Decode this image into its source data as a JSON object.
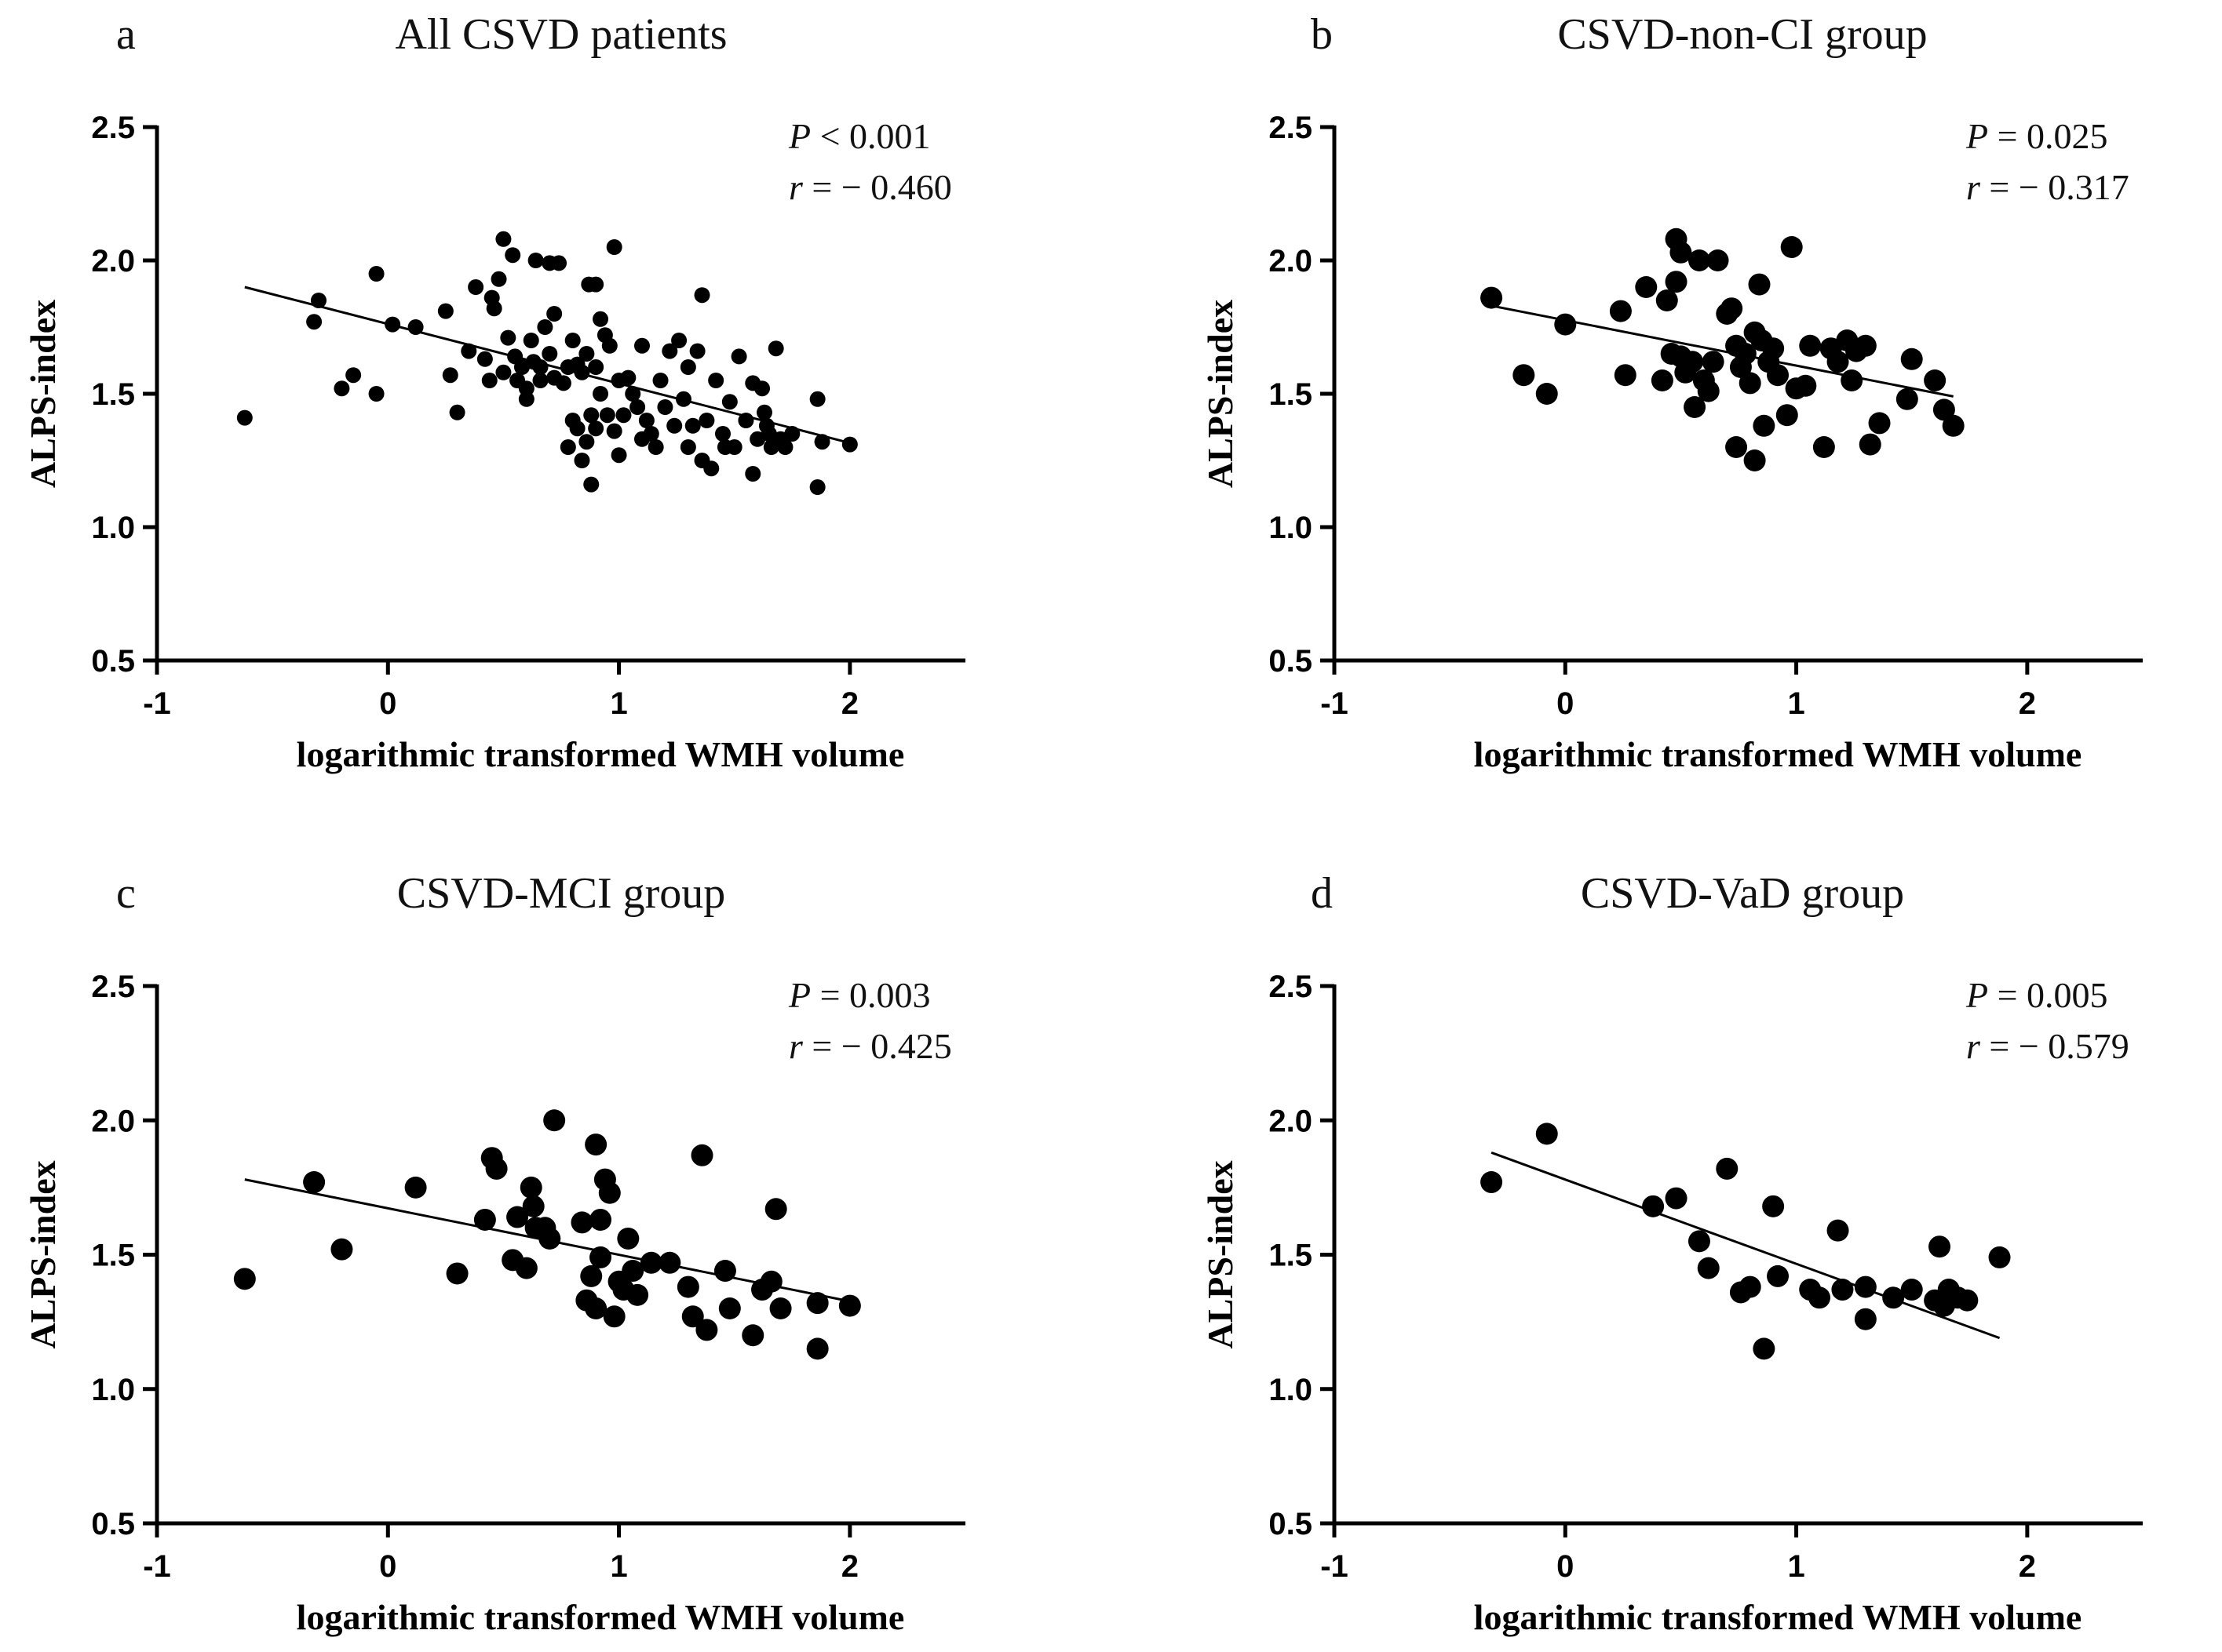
{
  "figure": {
    "panels": [
      "a",
      "b",
      "c",
      "d"
    ]
  },
  "chart_data": [
    {
      "type": "scatter",
      "label": "a",
      "title": "All CSVD patients",
      "xlabel": "logarithmic transformed WMH volume",
      "ylabel": "ALPS-index",
      "xlim": [
        -1,
        2.5
      ],
      "ylim": [
        0.5,
        2.5
      ],
      "xticks": [
        "-1",
        "0",
        "1",
        "2"
      ],
      "yticks": [
        "0.5",
        "1.0",
        "1.5",
        "2.0",
        "2.5"
      ],
      "p_italic": "P",
      "p_text": " < 0.001",
      "r_italic": "r",
      "r_text": " = − 0.460",
      "regression": {
        "x1": -0.62,
        "y1": 1.9,
        "x2": 1.98,
        "y2": 1.32
      },
      "points": [
        [
          -0.62,
          1.41
        ],
        [
          -0.32,
          1.77
        ],
        [
          -0.3,
          1.85
        ],
        [
          -0.2,
          1.52
        ],
        [
          -0.15,
          1.57
        ],
        [
          -0.05,
          1.95
        ],
        [
          -0.05,
          1.5
        ],
        [
          0.02,
          1.76
        ],
        [
          0.12,
          1.75
        ],
        [
          0.25,
          1.81
        ],
        [
          0.27,
          1.57
        ],
        [
          0.3,
          1.43
        ],
        [
          0.35,
          1.66
        ],
        [
          0.38,
          1.9
        ],
        [
          0.42,
          1.63
        ],
        [
          0.44,
          1.55
        ],
        [
          0.45,
          1.86
        ],
        [
          0.46,
          1.82
        ],
        [
          0.48,
          1.93
        ],
        [
          0.5,
          2.08
        ],
        [
          0.5,
          1.58
        ],
        [
          0.52,
          1.71
        ],
        [
          0.54,
          2.02
        ],
        [
          0.55,
          1.64
        ],
        [
          0.56,
          1.55
        ],
        [
          0.58,
          1.6
        ],
        [
          0.6,
          1.48
        ],
        [
          0.6,
          1.52
        ],
        [
          0.62,
          1.7
        ],
        [
          0.63,
          1.62
        ],
        [
          0.64,
          2.0
        ],
        [
          0.66,
          1.55
        ],
        [
          0.66,
          1.6
        ],
        [
          0.68,
          1.75
        ],
        [
          0.7,
          1.99
        ],
        [
          0.7,
          1.65
        ],
        [
          0.72,
          1.56
        ],
        [
          0.72,
          1.8
        ],
        [
          0.74,
          1.99
        ],
        [
          0.76,
          1.54
        ],
        [
          0.78,
          1.6
        ],
        [
          0.78,
          1.3
        ],
        [
          0.8,
          1.7
        ],
        [
          0.8,
          1.4
        ],
        [
          0.82,
          1.37
        ],
        [
          0.82,
          1.61
        ],
        [
          0.84,
          1.58
        ],
        [
          0.84,
          1.25
        ],
        [
          0.86,
          1.32
        ],
        [
          0.86,
          1.65
        ],
        [
          0.87,
          1.91
        ],
        [
          0.88,
          1.16
        ],
        [
          0.88,
          1.42
        ],
        [
          0.9,
          1.91
        ],
        [
          0.9,
          1.6
        ],
        [
          0.9,
          1.37
        ],
        [
          0.92,
          1.78
        ],
        [
          0.92,
          1.5
        ],
        [
          0.94,
          1.72
        ],
        [
          0.95,
          1.42
        ],
        [
          0.96,
          1.68
        ],
        [
          0.98,
          2.05
        ],
        [
          0.98,
          1.36
        ],
        [
          1.0,
          1.27
        ],
        [
          1.0,
          1.55
        ],
        [
          1.02,
          1.42
        ],
        [
          1.04,
          1.56
        ],
        [
          1.06,
          1.5
        ],
        [
          1.08,
          1.45
        ],
        [
          1.1,
          1.68
        ],
        [
          1.1,
          1.33
        ],
        [
          1.12,
          1.4
        ],
        [
          1.14,
          1.35
        ],
        [
          1.16,
          1.3
        ],
        [
          1.18,
          1.55
        ],
        [
          1.2,
          1.45
        ],
        [
          1.22,
          1.66
        ],
        [
          1.24,
          1.38
        ],
        [
          1.26,
          1.7
        ],
        [
          1.28,
          1.48
        ],
        [
          1.3,
          1.6
        ],
        [
          1.3,
          1.3
        ],
        [
          1.32,
          1.38
        ],
        [
          1.34,
          1.66
        ],
        [
          1.36,
          1.87
        ],
        [
          1.36,
          1.25
        ],
        [
          1.38,
          1.4
        ],
        [
          1.4,
          1.22
        ],
        [
          1.42,
          1.55
        ],
        [
          1.45,
          1.35
        ],
        [
          1.46,
          1.3
        ],
        [
          1.48,
          1.47
        ],
        [
          1.5,
          1.3
        ],
        [
          1.52,
          1.64
        ],
        [
          1.55,
          1.4
        ],
        [
          1.58,
          1.2
        ],
        [
          1.58,
          1.54
        ],
        [
          1.6,
          1.33
        ],
        [
          1.62,
          1.52
        ],
        [
          1.63,
          1.43
        ],
        [
          1.64,
          1.38
        ],
        [
          1.65,
          1.35
        ],
        [
          1.66,
          1.3
        ],
        [
          1.68,
          1.67
        ],
        [
          1.7,
          1.33
        ],
        [
          1.72,
          1.3
        ],
        [
          1.75,
          1.35
        ],
        [
          1.86,
          1.48
        ],
        [
          1.86,
          1.15
        ],
        [
          1.88,
          1.32
        ],
        [
          2.0,
          1.31
        ]
      ]
    },
    {
      "type": "scatter",
      "label": "b",
      "title": "CSVD-non-CI group",
      "xlabel": "logarithmic transformed WMH volume",
      "ylabel": "ALPS-index",
      "xlim": [
        -1,
        2.5
      ],
      "ylim": [
        0.5,
        2.5
      ],
      "xticks": [
        "-1",
        "0",
        "1",
        "2"
      ],
      "yticks": [
        "0.5",
        "1.0",
        "1.5",
        "2.0",
        "2.5"
      ],
      "p_italic": "P",
      "p_text": " = 0.025",
      "r_italic": "r",
      "r_text": " = − 0.317",
      "regression": {
        "x1": -0.32,
        "y1": 1.83,
        "x2": 1.68,
        "y2": 1.49
      },
      "points": [
        [
          -0.32,
          1.86
        ],
        [
          -0.18,
          1.57
        ],
        [
          -0.08,
          1.5
        ],
        [
          0.0,
          1.76
        ],
        [
          0.24,
          1.81
        ],
        [
          0.26,
          1.57
        ],
        [
          0.35,
          1.9
        ],
        [
          0.42,
          1.55
        ],
        [
          0.44,
          1.85
        ],
        [
          0.46,
          1.65
        ],
        [
          0.48,
          2.08
        ],
        [
          0.48,
          1.92
        ],
        [
          0.5,
          1.64
        ],
        [
          0.5,
          2.03
        ],
        [
          0.52,
          1.58
        ],
        [
          0.55,
          1.62
        ],
        [
          0.56,
          1.45
        ],
        [
          0.58,
          2.0
        ],
        [
          0.6,
          1.55
        ],
        [
          0.62,
          1.51
        ],
        [
          0.64,
          1.62
        ],
        [
          0.66,
          2.0
        ],
        [
          0.7,
          1.8
        ],
        [
          0.72,
          1.82
        ],
        [
          0.74,
          1.3
        ],
        [
          0.74,
          1.68
        ],
        [
          0.76,
          1.6
        ],
        [
          0.78,
          1.65
        ],
        [
          0.8,
          1.54
        ],
        [
          0.82,
          1.73
        ],
        [
          0.82,
          1.25
        ],
        [
          0.84,
          1.91
        ],
        [
          0.85,
          1.7
        ],
        [
          0.86,
          1.38
        ],
        [
          0.88,
          1.62
        ],
        [
          0.9,
          1.67
        ],
        [
          0.92,
          1.57
        ],
        [
          0.96,
          1.42
        ],
        [
          0.98,
          2.05
        ],
        [
          1.0,
          1.52
        ],
        [
          1.04,
          1.53
        ],
        [
          1.06,
          1.68
        ],
        [
          1.12,
          1.3
        ],
        [
          1.15,
          1.67
        ],
        [
          1.18,
          1.62
        ],
        [
          1.22,
          1.7
        ],
        [
          1.24,
          1.55
        ],
        [
          1.26,
          1.66
        ],
        [
          1.3,
          1.68
        ],
        [
          1.32,
          1.31
        ],
        [
          1.36,
          1.39
        ],
        [
          1.48,
          1.48
        ],
        [
          1.5,
          1.63
        ],
        [
          1.6,
          1.55
        ],
        [
          1.64,
          1.44
        ],
        [
          1.68,
          1.38
        ]
      ]
    },
    {
      "type": "scatter",
      "label": "c",
      "title": "CSVD-MCI group",
      "xlabel": "logarithmic transformed WMH volume",
      "ylabel": "ALPS-index",
      "xlim": [
        -1,
        2.5
      ],
      "ylim": [
        0.5,
        2.5
      ],
      "xticks": [
        "-1",
        "0",
        "1",
        "2"
      ],
      "yticks": [
        "0.5",
        "1.0",
        "1.5",
        "2.0",
        "2.5"
      ],
      "p_italic": "P",
      "p_text": " = 0.003",
      "r_italic": "r",
      "r_text": " = − 0.425",
      "regression": {
        "x1": -0.62,
        "y1": 1.78,
        "x2": 1.98,
        "y2": 1.33
      },
      "points": [
        [
          -0.62,
          1.41
        ],
        [
          -0.32,
          1.77
        ],
        [
          -0.2,
          1.52
        ],
        [
          0.12,
          1.75
        ],
        [
          0.3,
          1.43
        ],
        [
          0.42,
          1.63
        ],
        [
          0.45,
          1.86
        ],
        [
          0.47,
          1.82
        ],
        [
          0.54,
          1.48
        ],
        [
          0.56,
          1.64
        ],
        [
          0.6,
          1.45
        ],
        [
          0.62,
          1.75
        ],
        [
          0.63,
          1.68
        ],
        [
          0.64,
          1.6
        ],
        [
          0.68,
          1.6
        ],
        [
          0.7,
          1.56
        ],
        [
          0.72,
          2.0
        ],
        [
          0.84,
          1.62
        ],
        [
          0.86,
          1.33
        ],
        [
          0.88,
          1.42
        ],
        [
          0.9,
          1.91
        ],
        [
          0.9,
          1.3
        ],
        [
          0.92,
          1.63
        ],
        [
          0.92,
          1.49
        ],
        [
          0.94,
          1.78
        ],
        [
          0.96,
          1.73
        ],
        [
          0.98,
          1.27
        ],
        [
          1.0,
          1.4
        ],
        [
          1.02,
          1.37
        ],
        [
          1.04,
          1.56
        ],
        [
          1.06,
          1.44
        ],
        [
          1.08,
          1.35
        ],
        [
          1.14,
          1.47
        ],
        [
          1.22,
          1.47
        ],
        [
          1.3,
          1.38
        ],
        [
          1.32,
          1.27
        ],
        [
          1.36,
          1.87
        ],
        [
          1.38,
          1.22
        ],
        [
          1.46,
          1.44
        ],
        [
          1.48,
          1.3
        ],
        [
          1.58,
          1.2
        ],
        [
          1.62,
          1.37
        ],
        [
          1.66,
          1.4
        ],
        [
          1.68,
          1.67
        ],
        [
          1.7,
          1.3
        ],
        [
          1.86,
          1.32
        ],
        [
          1.86,
          1.15
        ],
        [
          2.0,
          1.31
        ]
      ]
    },
    {
      "type": "scatter",
      "label": "d",
      "title": "CSVD-VaD group",
      "xlabel": "logarithmic transformed WMH volume",
      "ylabel": "ALPS-index",
      "xlim": [
        -1,
        2.5
      ],
      "ylim": [
        0.5,
        2.5
      ],
      "xticks": [
        "-1",
        "0",
        "1",
        "2"
      ],
      "yticks": [
        "0.5",
        "1.0",
        "1.5",
        "2.0",
        "2.5"
      ],
      "p_italic": "P",
      "p_text": " = 0.005",
      "r_italic": "r",
      "r_text": " = − 0.579",
      "regression": {
        "x1": -0.32,
        "y1": 1.88,
        "x2": 1.88,
        "y2": 1.19
      },
      "points": [
        [
          -0.32,
          1.77
        ],
        [
          -0.08,
          1.95
        ],
        [
          0.38,
          1.68
        ],
        [
          0.48,
          1.71
        ],
        [
          0.58,
          1.55
        ],
        [
          0.62,
          1.45
        ],
        [
          0.7,
          1.82
        ],
        [
          0.76,
          1.36
        ],
        [
          0.8,
          1.38
        ],
        [
          0.86,
          1.15
        ],
        [
          0.9,
          1.68
        ],
        [
          0.92,
          1.42
        ],
        [
          1.06,
          1.37
        ],
        [
          1.1,
          1.34
        ],
        [
          1.18,
          1.59
        ],
        [
          1.2,
          1.37
        ],
        [
          1.3,
          1.26
        ],
        [
          1.3,
          1.38
        ],
        [
          1.42,
          1.34
        ],
        [
          1.5,
          1.37
        ],
        [
          1.6,
          1.33
        ],
        [
          1.62,
          1.53
        ],
        [
          1.64,
          1.31
        ],
        [
          1.66,
          1.37
        ],
        [
          1.7,
          1.34
        ],
        [
          1.74,
          1.33
        ],
        [
          1.88,
          1.49
        ]
      ]
    }
  ]
}
